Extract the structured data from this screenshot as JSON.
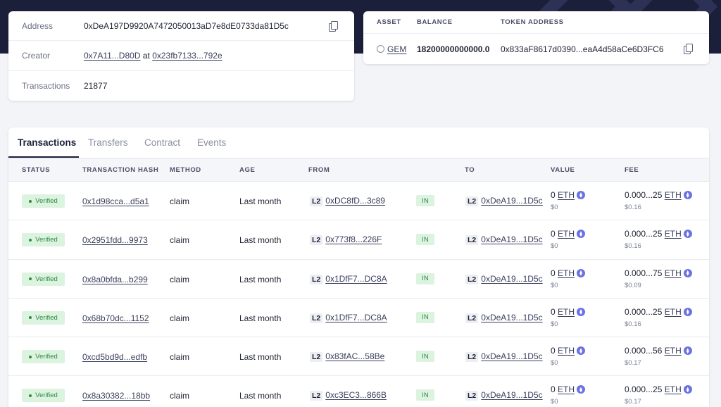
{
  "overview": {
    "address_label": "Address",
    "address_value": "0xDeA197D9920A7472050013aD7e8dE0733da81D5c",
    "creator_label": "Creator",
    "creator_address": "0x7A11...D80D",
    "creator_at": "at",
    "creator_tx": "0x23fb7133...792e",
    "transactions_label": "Transactions",
    "transactions_value": "21877"
  },
  "assets": {
    "headers": {
      "asset": "ASSET",
      "balance": "BALANCE",
      "token_address": "TOKEN ADDRESS"
    },
    "row": {
      "asset": "GEM",
      "balance": "18200000000000.0",
      "token_address": "0x833aF8617d0390...eaA4d58aCe6D3FC6"
    }
  },
  "tabs": [
    "Transactions",
    "Transfers",
    "Contract",
    "Events"
  ],
  "active_tab": "Transactions",
  "table": {
    "headers": {
      "status": "STATUS",
      "hash": "TRANSACTION HASH",
      "method": "METHOD",
      "age": "AGE",
      "from": "FROM",
      "to": "TO",
      "value": "VALUE",
      "fee": "FEE"
    },
    "rows": [
      {
        "status": "Verified",
        "hash": "0x1d98cca...d5a1",
        "method": "claim",
        "age": "Last month",
        "from_tag": "L2",
        "from": "0xDC8fD...3c89",
        "direction": "IN",
        "to_tag": "L2",
        "to": "0xDeA19...1D5c",
        "value": "0",
        "value_unit": "ETH",
        "value_usd": "$0",
        "fee": "0.000...25",
        "fee_unit": "ETH",
        "fee_usd": "$0.16"
      },
      {
        "status": "Verified",
        "hash": "0x2951fdd...9973",
        "method": "claim",
        "age": "Last month",
        "from_tag": "L2",
        "from": "0x773f8...226F",
        "direction": "IN",
        "to_tag": "L2",
        "to": "0xDeA19...1D5c",
        "value": "0",
        "value_unit": "ETH",
        "value_usd": "$0",
        "fee": "0.000...25",
        "fee_unit": "ETH",
        "fee_usd": "$0.16"
      },
      {
        "status": "Verified",
        "hash": "0x8a0bfda...b299",
        "method": "claim",
        "age": "Last month",
        "from_tag": "L2",
        "from": "0x1DfF7...DC8A",
        "direction": "IN",
        "to_tag": "L2",
        "to": "0xDeA19...1D5c",
        "value": "0",
        "value_unit": "ETH",
        "value_usd": "$0",
        "fee": "0.000...75",
        "fee_unit": "ETH",
        "fee_usd": "$0.09"
      },
      {
        "status": "Verified",
        "hash": "0x68b70dc...1152",
        "method": "claim",
        "age": "Last month",
        "from_tag": "L2",
        "from": "0x1DfF7...DC8A",
        "direction": "IN",
        "to_tag": "L2",
        "to": "0xDeA19...1D5c",
        "value": "0",
        "value_unit": "ETH",
        "value_usd": "$0",
        "fee": "0.000...25",
        "fee_unit": "ETH",
        "fee_usd": "$0.16"
      },
      {
        "status": "Verified",
        "hash": "0xcd5bd9d...edfb",
        "method": "claim",
        "age": "Last month",
        "from_tag": "L2",
        "from": "0x83fAC...58Be",
        "direction": "IN",
        "to_tag": "L2",
        "to": "0xDeA19...1D5c",
        "value": "0",
        "value_unit": "ETH",
        "value_usd": "$0",
        "fee": "0.000...56",
        "fee_unit": "ETH",
        "fee_usd": "$0.17"
      },
      {
        "status": "Verified",
        "hash": "0x8a30382...18bb",
        "method": "claim",
        "age": "Last month",
        "from_tag": "L2",
        "from": "0xc3EC3...866B",
        "direction": "IN",
        "to_tag": "L2",
        "to": "0xDeA19...1D5c",
        "value": "0",
        "value_unit": "ETH",
        "value_usd": "$0",
        "fee": "0.000...25",
        "fee_unit": "ETH",
        "fee_usd": "$0.17"
      }
    ]
  },
  "icons": {
    "copy": "copy-icon",
    "gem": "gem-token-icon",
    "eth": "eth-icon"
  },
  "colors": {
    "header_bg": "#1b1f3a",
    "verified_bg": "#dcf3df",
    "verified_text": "#2f8a43",
    "eth": "#6b72e3"
  }
}
